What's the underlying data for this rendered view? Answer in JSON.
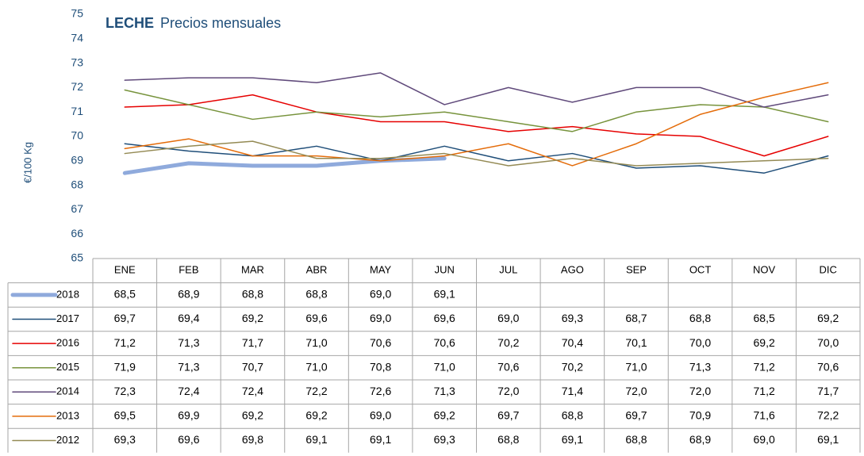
{
  "chart_data": {
    "type": "line",
    "title": "LECHE",
    "subtitle": "Precios mensuales",
    "y_label": "€/100 Kg",
    "categories": [
      "ENE",
      "FEB",
      "MAR",
      "ABR",
      "MAY",
      "JUN",
      "JUL",
      "AGO",
      "SEP",
      "OCT",
      "NOV",
      "DIC"
    ],
    "ylim": [
      65,
      75
    ],
    "yticks": [
      65,
      66,
      67,
      68,
      69,
      70,
      71,
      72,
      73,
      74,
      75
    ],
    "series": [
      {
        "name": "2018",
        "color": "#8faadc",
        "width": 5,
        "values": [
          68.5,
          68.9,
          68.8,
          68.8,
          69.0,
          69.1,
          null,
          null,
          null,
          null,
          null,
          null
        ],
        "value_labels": [
          "68,5",
          "68,9",
          "68,8",
          "68,8",
          "69,0",
          "69,1",
          null,
          null,
          null,
          null,
          null,
          null
        ]
      },
      {
        "name": "2017",
        "color": "#1f4e79",
        "width": 1.5,
        "values": [
          69.7,
          69.4,
          69.2,
          69.6,
          69.0,
          69.6,
          69.0,
          69.3,
          68.7,
          68.8,
          68.5,
          69.2
        ],
        "value_labels": [
          "69,7",
          "69,4",
          "69,2",
          "69,6",
          "69,0",
          "69,6",
          "69,0",
          "69,3",
          "68,7",
          "68,8",
          "68,5",
          "69,2"
        ]
      },
      {
        "name": "2016",
        "color": "#e60000",
        "width": 1.5,
        "values": [
          71.2,
          71.3,
          71.7,
          71.0,
          70.6,
          70.6,
          70.2,
          70.4,
          70.1,
          70.0,
          69.2,
          70.0
        ],
        "value_labels": [
          "71,2",
          "71,3",
          "71,7",
          "71,0",
          "70,6",
          "70,6",
          "70,2",
          "70,4",
          "70,1",
          "70,0",
          "69,2",
          "70,0"
        ]
      },
      {
        "name": "2015",
        "color": "#77933c",
        "width": 1.5,
        "values": [
          71.9,
          71.3,
          70.7,
          71.0,
          70.8,
          71.0,
          70.6,
          70.2,
          71.0,
          71.3,
          71.2,
          70.6
        ],
        "value_labels": [
          "71,9",
          "71,3",
          "70,7",
          "71,0",
          "70,8",
          "71,0",
          "70,6",
          "70,2",
          "71,0",
          "71,3",
          "71,2",
          "70,6"
        ]
      },
      {
        "name": "2014",
        "color": "#604a7b",
        "width": 1.5,
        "values": [
          72.3,
          72.4,
          72.4,
          72.2,
          72.6,
          71.3,
          72.0,
          71.4,
          72.0,
          72.0,
          71.2,
          71.7
        ],
        "value_labels": [
          "72,3",
          "72,4",
          "72,4",
          "72,2",
          "72,6",
          "71,3",
          "72,0",
          "71,4",
          "72,0",
          "72,0",
          "71,2",
          "71,7"
        ]
      },
      {
        "name": "2013",
        "color": "#e46c0a",
        "width": 1.5,
        "values": [
          69.5,
          69.9,
          69.2,
          69.2,
          69.0,
          69.2,
          69.7,
          68.8,
          69.7,
          70.9,
          71.6,
          72.2
        ],
        "value_labels": [
          "69,5",
          "69,9",
          "69,2",
          "69,2",
          "69,0",
          "69,2",
          "69,7",
          "68,8",
          "69,7",
          "70,9",
          "71,6",
          "72,2"
        ]
      },
      {
        "name": "2012",
        "color": "#948a54",
        "width": 1.5,
        "values": [
          69.3,
          69.6,
          69.8,
          69.1,
          69.1,
          69.3,
          68.8,
          69.1,
          68.8,
          68.9,
          69.0,
          69.1
        ],
        "value_labels": [
          "69,3",
          "69,6",
          "69,8",
          "69,1",
          "69,1",
          "69,3",
          "68,8",
          "69,1",
          "68,8",
          "68,9",
          "69,0",
          "69,1"
        ]
      }
    ]
  }
}
